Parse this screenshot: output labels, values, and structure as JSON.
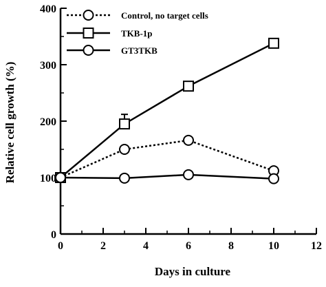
{
  "chart_data": {
    "type": "line",
    "xlabel": "Days in culture",
    "ylabel": "Relative cell growth (%)",
    "xlim": [
      0,
      12
    ],
    "ylim": [
      0,
      400
    ],
    "xticks": [
      0,
      2,
      4,
      6,
      8,
      10,
      12
    ],
    "yticks": [
      0,
      100,
      200,
      300,
      400
    ],
    "grid": false,
    "legend_position": "top-left",
    "series": [
      {
        "name": "Control, no target cells",
        "marker": "circle",
        "line_style": "dotted",
        "x": [
          0,
          3,
          6,
          10
        ],
        "y": [
          100,
          150,
          166,
          112
        ]
      },
      {
        "name": "TKB-1p",
        "marker": "square",
        "line_style": "solid",
        "x": [
          0,
          3,
          6,
          10
        ],
        "y": [
          100,
          195,
          262,
          338
        ],
        "error": [
          0,
          17,
          0,
          0
        ]
      },
      {
        "name": "GT3TKB",
        "marker": "circle",
        "line_style": "solid",
        "x": [
          0,
          3,
          6,
          10
        ],
        "y": [
          100,
          99,
          105,
          98
        ]
      }
    ]
  }
}
